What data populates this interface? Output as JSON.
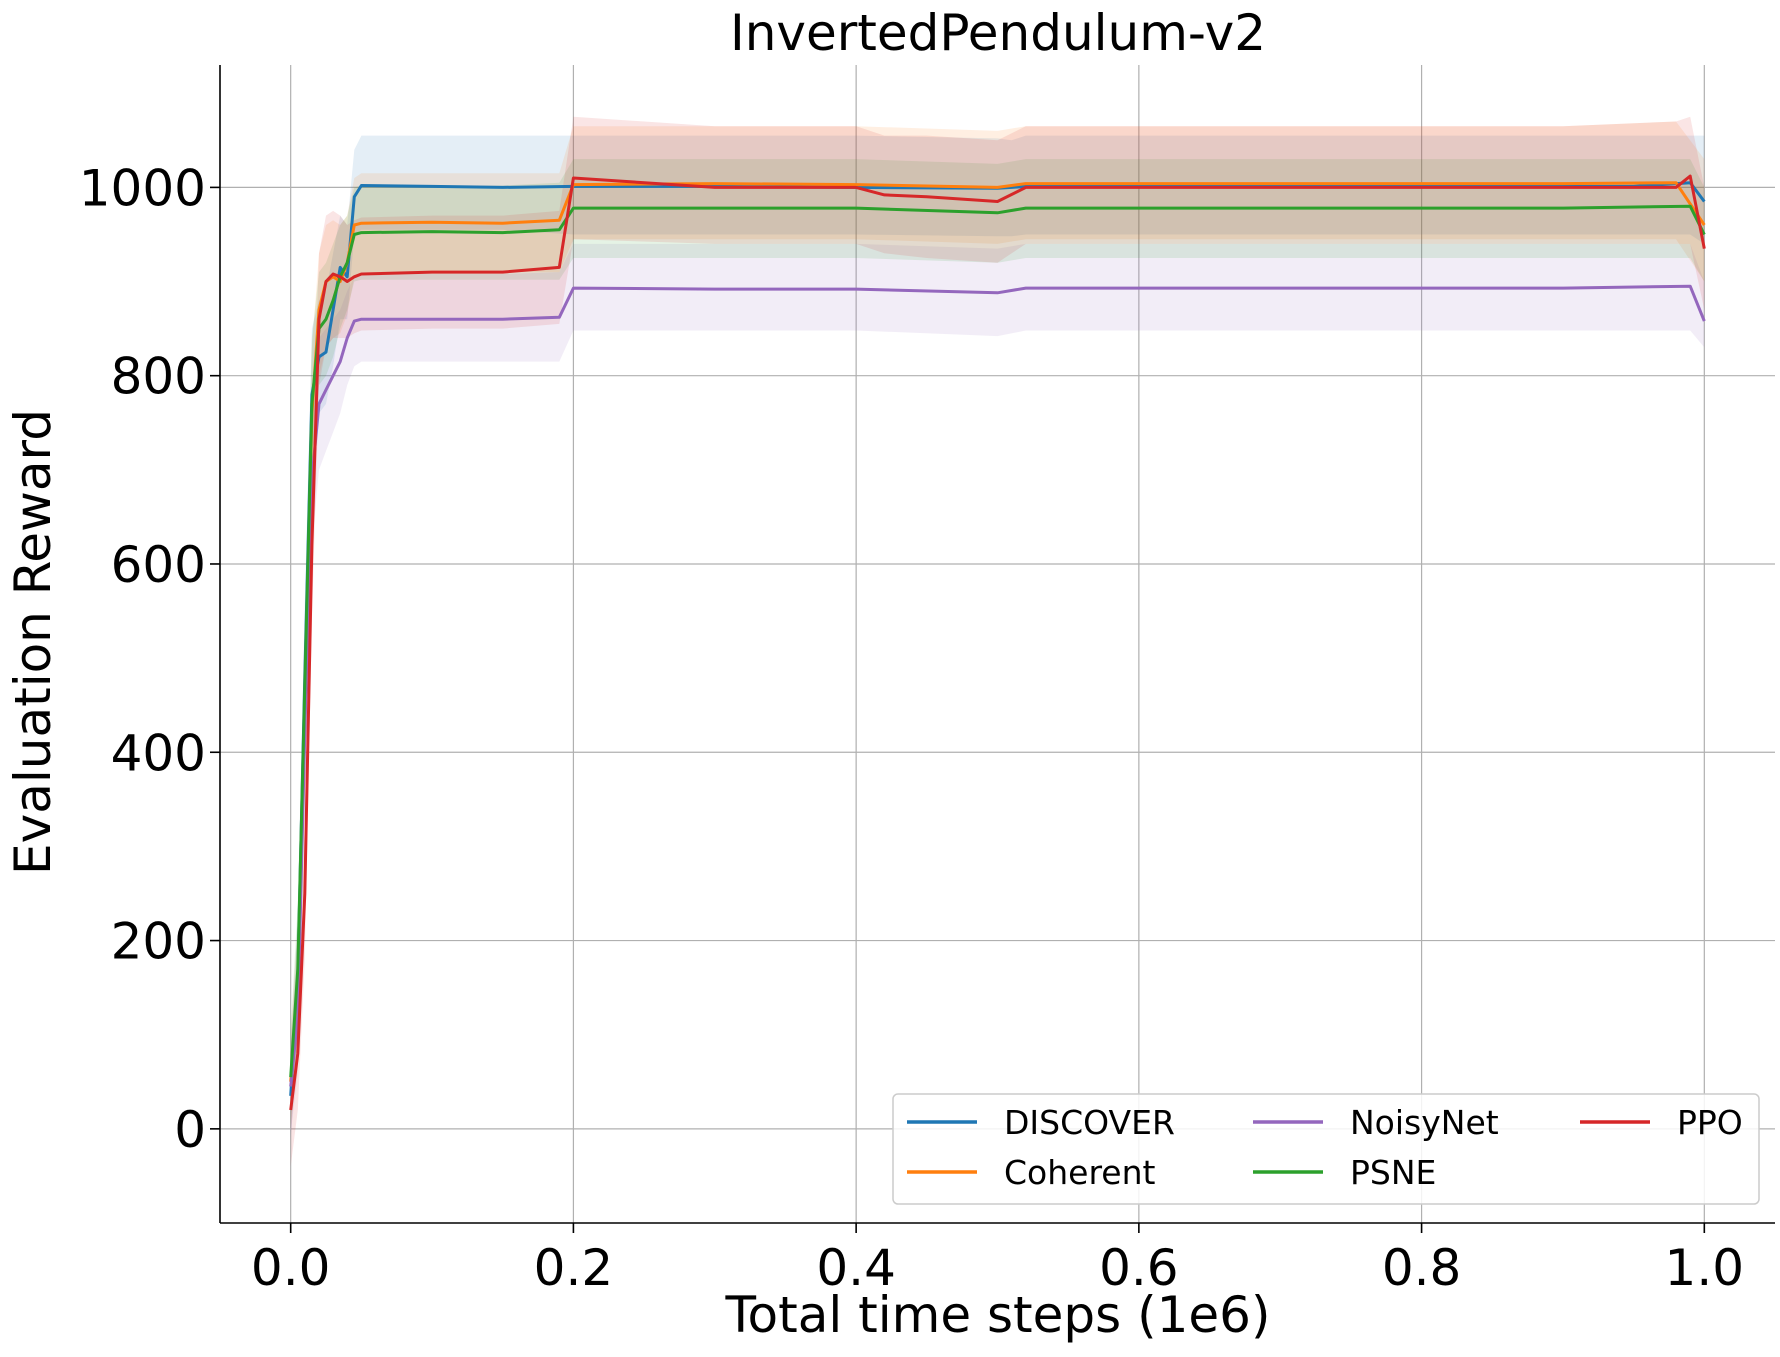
{
  "chart_data": {
    "type": "line",
    "title": "InvertedPendulum-v2",
    "xlabel": "Total time steps (1e6)",
    "ylabel": "Evaluation Reward",
    "xlim": [
      -0.05,
      1.05
    ],
    "ylim": [
      -100,
      1130
    ],
    "x_ticks": [
      {
        "value": 0.0,
        "label": "0.0"
      },
      {
        "value": 0.2,
        "label": "0.2"
      },
      {
        "value": 0.4,
        "label": "0.4"
      },
      {
        "value": 0.6,
        "label": "0.6"
      },
      {
        "value": 0.8,
        "label": "0.8"
      },
      {
        "value": 1.0,
        "label": "1.0"
      }
    ],
    "y_ticks": [
      {
        "value": 0,
        "label": "0"
      },
      {
        "value": 200,
        "label": "200"
      },
      {
        "value": 400,
        "label": "400"
      },
      {
        "value": 600,
        "label": "600"
      },
      {
        "value": 800,
        "label": "800"
      },
      {
        "value": 1000,
        "label": "1000"
      }
    ],
    "grid": true,
    "legend_position": "bottom-right",
    "legend_columns": 3,
    "series": [
      {
        "name": "DISCOVER",
        "color": "#1f77b4",
        "x": [
          0,
          0.005,
          0.01,
          0.015,
          0.02,
          0.025,
          0.03,
          0.035,
          0.04,
          0.045,
          0.05,
          0.1,
          0.15,
          0.2,
          0.3,
          0.4,
          0.5,
          0.51,
          0.52,
          0.6,
          0.7,
          0.8,
          0.9,
          0.95,
          0.99,
          1.0
        ],
        "y": [
          35,
          160,
          480,
          780,
          820,
          825,
          870,
          915,
          905,
          990,
          1002,
          1001,
          1000,
          1001,
          1001,
          1000,
          999,
          1000,
          1001,
          1001,
          1001,
          1001,
          1001,
          1001,
          1005,
          985
        ],
        "lower": [
          -10,
          90,
          420,
          720,
          760,
          770,
          810,
          860,
          860,
          950,
          955,
          955,
          955,
          950,
          950,
          950,
          948,
          948,
          950,
          950,
          950,
          950,
          950,
          950,
          950,
          940
        ],
        "upper": [
          80,
          230,
          560,
          850,
          880,
          890,
          930,
          970,
          960,
          1040,
          1055,
          1055,
          1055,
          1055,
          1055,
          1055,
          1052,
          1050,
          1055,
          1055,
          1055,
          1055,
          1055,
          1055,
          1055,
          1055
        ]
      },
      {
        "name": "Coherent",
        "color": "#ff7f0e",
        "x": [
          0,
          0.005,
          0.01,
          0.015,
          0.02,
          0.025,
          0.03,
          0.035,
          0.04,
          0.045,
          0.05,
          0.1,
          0.15,
          0.19,
          0.2,
          0.3,
          0.4,
          0.5,
          0.52,
          0.6,
          0.7,
          0.8,
          0.9,
          0.98,
          1.0
        ],
        "y": [
          50,
          150,
          450,
          760,
          870,
          900,
          905,
          900,
          920,
          960,
          962,
          963,
          962,
          965,
          1003,
          1004,
          1003,
          1000,
          1004,
          1004,
          1004,
          1004,
          1004,
          1005,
          960
        ],
        "lower": [
          0,
          80,
          380,
          690,
          800,
          830,
          840,
          845,
          865,
          905,
          910,
          910,
          910,
          910,
          945,
          945,
          945,
          940,
          945,
          945,
          945,
          945,
          945,
          945,
          900
        ],
        "upper": [
          100,
          220,
          520,
          830,
          930,
          960,
          965,
          960,
          970,
          1010,
          1015,
          1015,
          1015,
          1015,
          1065,
          1065,
          1065,
          1060,
          1065,
          1065,
          1065,
          1065,
          1065,
          1070,
          1030
        ]
      },
      {
        "name": "NoisyNet",
        "color": "#9467bd",
        "x": [
          0,
          0.005,
          0.01,
          0.015,
          0.02,
          0.025,
          0.03,
          0.035,
          0.04,
          0.045,
          0.05,
          0.1,
          0.15,
          0.19,
          0.2,
          0.3,
          0.4,
          0.5,
          0.52,
          0.6,
          0.7,
          0.8,
          0.9,
          0.99,
          1.0
        ],
        "y": [
          45,
          120,
          420,
          690,
          770,
          785,
          800,
          815,
          840,
          858,
          860,
          860,
          860,
          862,
          893,
          892,
          892,
          888,
          893,
          893,
          893,
          893,
          893,
          895,
          858
        ],
        "lower": [
          -5,
          60,
          350,
          620,
          700,
          720,
          740,
          760,
          790,
          810,
          815,
          815,
          815,
          815,
          848,
          848,
          848,
          842,
          848,
          848,
          848,
          848,
          848,
          848,
          830
        ],
        "upper": [
          95,
          190,
          490,
          760,
          840,
          850,
          860,
          870,
          890,
          905,
          908,
          908,
          908,
          910,
          940,
          940,
          940,
          935,
          940,
          940,
          940,
          940,
          940,
          940,
          900
        ]
      },
      {
        "name": "PSNE",
        "color": "#2ca02c",
        "x": [
          0,
          0.005,
          0.01,
          0.015,
          0.02,
          0.025,
          0.03,
          0.035,
          0.04,
          0.045,
          0.05,
          0.1,
          0.15,
          0.19,
          0.2,
          0.3,
          0.4,
          0.5,
          0.52,
          0.6,
          0.7,
          0.8,
          0.9,
          0.99,
          1.0
        ],
        "y": [
          55,
          170,
          470,
          770,
          850,
          860,
          880,
          905,
          920,
          950,
          952,
          953,
          952,
          955,
          978,
          978,
          978,
          973,
          978,
          978,
          978,
          978,
          978,
          980,
          950
        ],
        "lower": [
          5,
          100,
          400,
          700,
          790,
          800,
          820,
          850,
          870,
          900,
          902,
          902,
          902,
          902,
          925,
          925,
          925,
          920,
          925,
          925,
          925,
          925,
          925,
          925,
          900
        ],
        "upper": [
          105,
          240,
          540,
          840,
          910,
          920,
          940,
          960,
          970,
          1000,
          1002,
          1002,
          1002,
          1005,
          1030,
          1030,
          1030,
          1025,
          1030,
          1030,
          1030,
          1030,
          1030,
          1030,
          1000
        ]
      },
      {
        "name": "PPO",
        "color": "#d62728",
        "x": [
          0,
          0.005,
          0.01,
          0.015,
          0.02,
          0.025,
          0.03,
          0.035,
          0.04,
          0.045,
          0.05,
          0.1,
          0.15,
          0.19,
          0.2,
          0.3,
          0.4,
          0.42,
          0.45,
          0.5,
          0.52,
          0.6,
          0.7,
          0.8,
          0.9,
          0.98,
          0.99,
          1.0
        ],
        "y": [
          20,
          80,
          250,
          620,
          860,
          900,
          908,
          905,
          900,
          905,
          908,
          910,
          910,
          915,
          1010,
          1000,
          1000,
          992,
          990,
          985,
          1000,
          1000,
          1000,
          1000,
          1000,
          1000,
          1012,
          935
        ],
        "lower": [
          -40,
          20,
          180,
          540,
          790,
          830,
          840,
          840,
          840,
          845,
          848,
          850,
          850,
          855,
          945,
          940,
          940,
          930,
          925,
          920,
          940,
          940,
          940,
          940,
          940,
          940,
          940,
          870
        ],
        "upper": [
          80,
          140,
          320,
          700,
          930,
          970,
          975,
          970,
          960,
          965,
          968,
          970,
          970,
          975,
          1075,
          1065,
          1065,
          1055,
          1055,
          1050,
          1065,
          1065,
          1065,
          1065,
          1065,
          1070,
          1075,
          1000
        ]
      }
    ]
  }
}
